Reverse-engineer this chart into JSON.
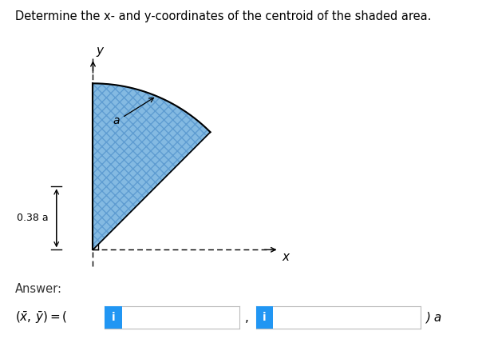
{
  "title": "Determine the x- and y-coordinates of the centroid of the shaded area.",
  "title_fontsize": 10.5,
  "bg_color": "#ffffff",
  "shade_color": "#5ba3d9",
  "shade_alpha": 0.75,
  "answer_label": "Answer:",
  "dim_label": "0.38 a",
  "arc_label": "a",
  "axis_x_label": "x",
  "axis_y_label": "y",
  "box_color": "#2196f3",
  "formula_end": ") a"
}
